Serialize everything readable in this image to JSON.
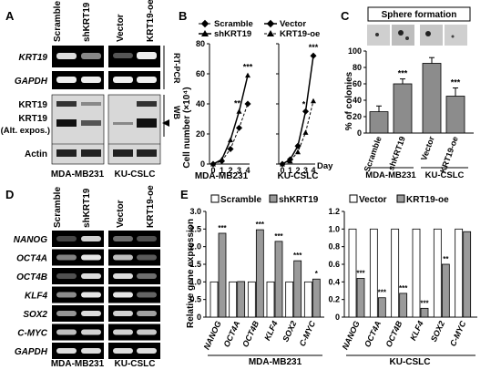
{
  "panels": {
    "A": "A",
    "B": "B",
    "C": "C",
    "D": "D",
    "E": "E"
  },
  "panelA": {
    "col_labels": [
      "Scramble",
      "shKRT19",
      "Vector",
      "KRT19-oe"
    ],
    "row_labels": [
      "KRT19",
      "GAPDH",
      "KRT19",
      "KRT19",
      "(Alt. expos.)",
      "Actin"
    ],
    "side_labels": [
      "RT-PCR",
      "WB"
    ],
    "cell_lines": [
      "MDA-MB231",
      "KU-CSLC"
    ]
  },
  "panelC": {
    "header": "Sphere formation",
    "ylabel": "% of colonies",
    "y_ticks": [
      "0",
      "20",
      "40",
      "60",
      "80",
      "100"
    ]
  },
  "panelD": {
    "col_labels": [
      "Scramble",
      "shKRT19",
      "Vector",
      "KRT19-oe"
    ],
    "genes": [
      "NANOG",
      "OCT4A",
      "OCT4B",
      "KLF4",
      "SOX2",
      "C-MYC",
      "GAPDH"
    ],
    "cell_lines": [
      "MDA-MB231",
      "KU-CSLC"
    ]
  },
  "chart_data": [
    {
      "type": "line",
      "panel": "B-left",
      "xlabel": "MDA-MB231",
      "ylabel": "Cell number (×10⁴)",
      "x": [
        0,
        1,
        2,
        3,
        4
      ],
      "ylim": [
        0,
        80
      ],
      "y_ticks": [
        0,
        20,
        40,
        60,
        80
      ],
      "series": [
        {
          "name": "Scramble",
          "values": [
            0,
            2,
            10,
            24,
            40
          ]
        },
        {
          "name": "shKRT19",
          "values": [
            0,
            3,
            16,
            35,
            59
          ]
        }
      ],
      "annotations": [
        "**",
        "***"
      ]
    },
    {
      "type": "line",
      "panel": "B-right",
      "xlabel": "KU-CSLC",
      "x": [
        0,
        1,
        2,
        3,
        4
      ],
      "x_unit": "Day",
      "ylim": [
        0,
        80
      ],
      "series": [
        {
          "name": "Vector",
          "values": [
            0,
            3,
            12,
            35,
            72
          ]
        },
        {
          "name": "KRT19-oe",
          "values": [
            0,
            2,
            8,
            21,
            42
          ]
        }
      ],
      "annotations": [
        "*",
        "***"
      ]
    },
    {
      "type": "bar",
      "panel": "C",
      "categories": [
        "Scramble",
        "shKRT19",
        "Vector",
        "KRT19-oe"
      ],
      "values": [
        26,
        60,
        85,
        45
      ],
      "errors": [
        7,
        6,
        7,
        10
      ],
      "ylim": [
        0,
        100
      ],
      "groups": [
        "MDA-MB231",
        "KU-CSLC"
      ],
      "annotations": [
        "",
        "***",
        "",
        "***"
      ]
    },
    {
      "type": "bar",
      "panel": "E-left",
      "title": "MDA-MB231",
      "ylabel": "Relative gene expression",
      "categories": [
        "NANOG",
        "OCT4A",
        "OCT4B",
        "KLF4",
        "SOX2",
        "C-MYC"
      ],
      "ylim": [
        0,
        3.0
      ],
      "y_ticks": [
        "0",
        "0.5",
        "1.0",
        "1.5",
        "2.0",
        "2.5",
        "3.0"
      ],
      "series": [
        {
          "name": "Scramble",
          "values": [
            1.0,
            1.0,
            1.0,
            1.0,
            1.0,
            1.0
          ]
        },
        {
          "name": "shKRT19",
          "values": [
            2.38,
            1.01,
            2.48,
            2.15,
            1.6,
            1.08
          ]
        }
      ],
      "annotations": [
        "***",
        "",
        "***",
        "***",
        "***",
        "*"
      ]
    },
    {
      "type": "bar",
      "panel": "E-right",
      "title": "KU-CSLC",
      "categories": [
        "NANOG",
        "OCT4A",
        "OCT4B",
        "KLF4",
        "SOX2",
        "C-MYC"
      ],
      "ylim": [
        0,
        1.2
      ],
      "y_ticks": [
        "0",
        "0.2",
        "0.4",
        "0.6",
        "0.8",
        "1.0",
        "1.2"
      ],
      "series": [
        {
          "name": "Vector",
          "values": [
            1.0,
            1.0,
            1.0,
            1.0,
            1.0,
            1.0
          ]
        },
        {
          "name": "KRT19-oe",
          "values": [
            0.44,
            0.22,
            0.27,
            0.1,
            0.6,
            0.97
          ]
        }
      ],
      "annotations": [
        "***",
        "***",
        "***",
        "***",
        "**",
        ""
      ]
    }
  ]
}
